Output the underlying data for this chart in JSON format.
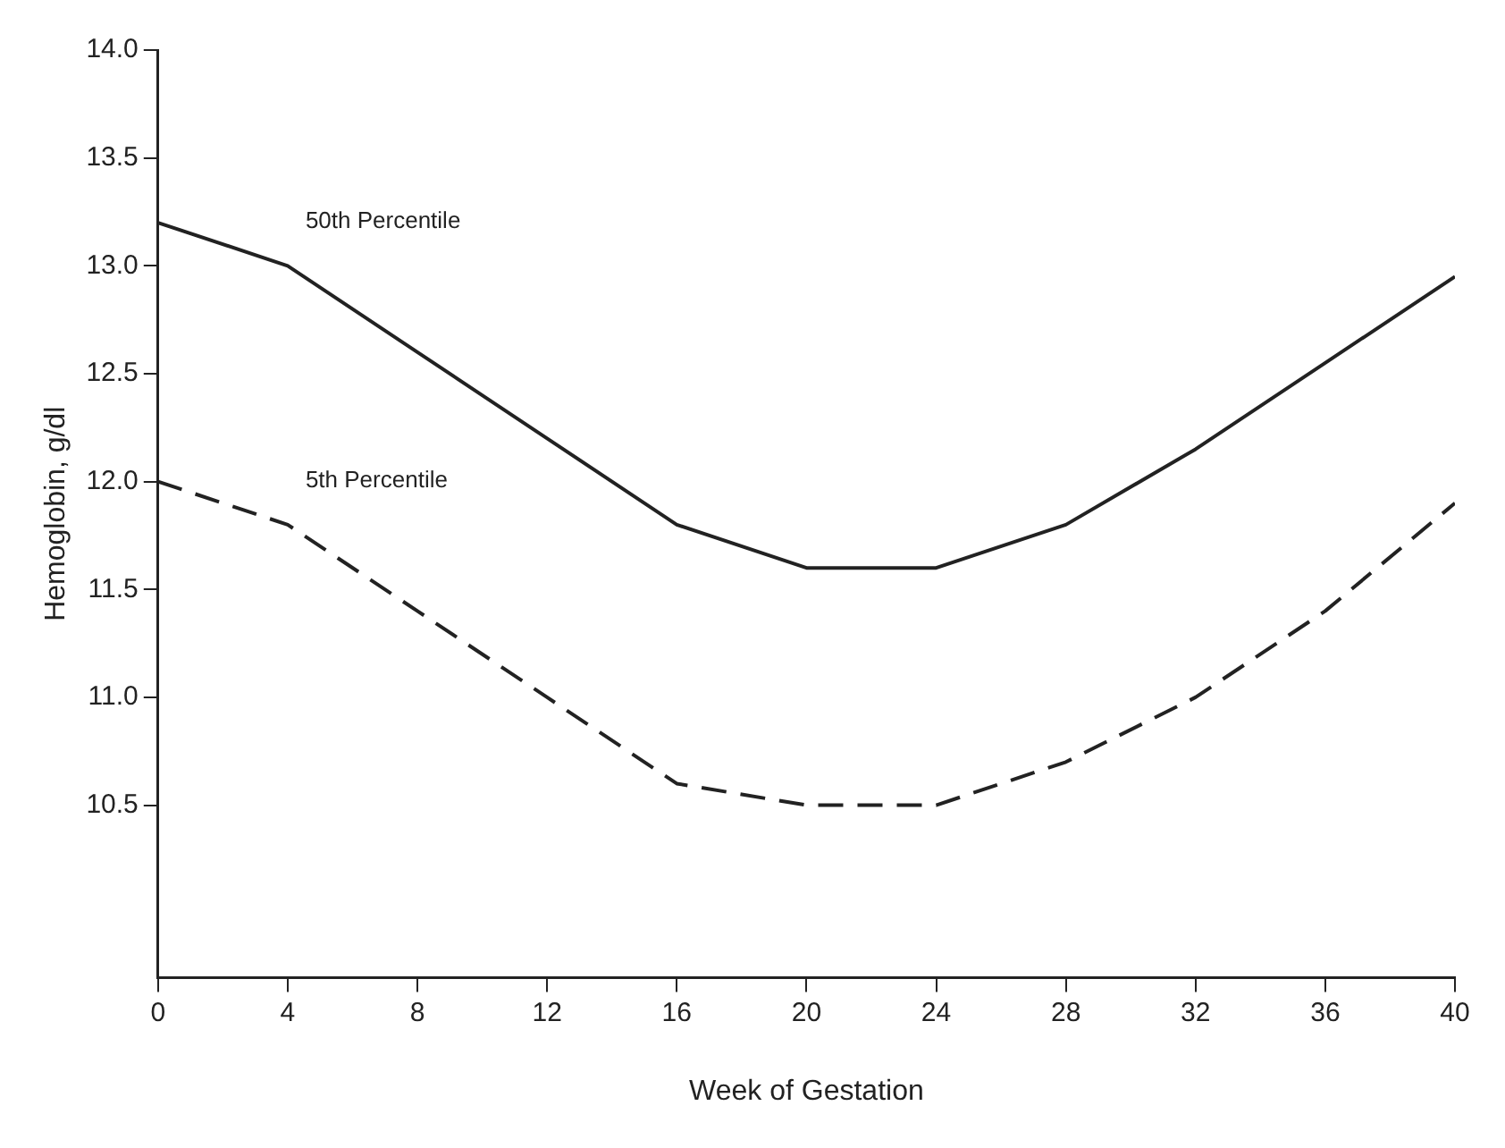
{
  "chart_data": {
    "type": "line",
    "xlabel": "Week of Gestation",
    "ylabel": "Hemoglobin, g/dl",
    "x": [
      0,
      4,
      8,
      12,
      16,
      20,
      24,
      28,
      32,
      36,
      40
    ],
    "series": [
      {
        "name": "50th Percentile",
        "color": "#222222",
        "line_style": "solid",
        "values": [
          13.2,
          13.0,
          12.6,
          12.2,
          11.8,
          11.6,
          11.6,
          11.8,
          12.15,
          12.55,
          12.95
        ]
      },
      {
        "name": "5th Percentile",
        "color": "#222222",
        "line_style": "dashed",
        "values": [
          12.0,
          11.8,
          11.4,
          11.0,
          10.6,
          10.5,
          10.5,
          10.7,
          11.0,
          11.4,
          11.9
        ]
      }
    ],
    "xlim": [
      0,
      40
    ],
    "xticks": [
      0,
      4,
      8,
      12,
      16,
      20,
      24,
      28,
      32,
      36,
      40
    ],
    "ylim": [
      9.7,
      14.0
    ],
    "yticks": [
      10.5,
      {
        "value": 11,
        "label": "11.0"
      },
      11.5,
      {
        "value": 12,
        "label": "12.0"
      },
      12.5,
      {
        "value": 13,
        "label": "13.0"
      },
      13.5,
      {
        "value": 14,
        "label": "14.0"
      }
    ],
    "grid": false,
    "legend": false,
    "marker": "none"
  }
}
